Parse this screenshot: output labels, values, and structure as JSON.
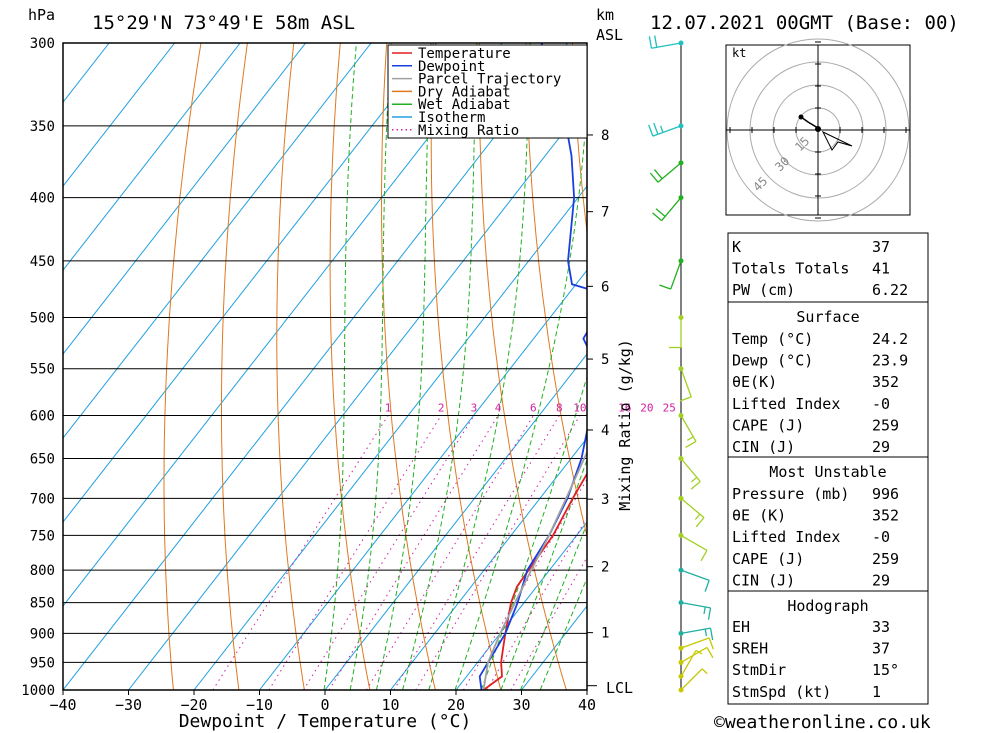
{
  "header": {
    "left_unit": "hPa",
    "location": "15°29'N  73°49'E  58m  ASL",
    "right_unit_1": "km",
    "right_unit_2": "ASL",
    "datetime": "12.07.2021  00GMT  (Base: 00)"
  },
  "legend": {
    "items": [
      {
        "label": "Temperature",
        "color": "#e02020",
        "style": "solid"
      },
      {
        "label": "Dewpoint",
        "color": "#1a3fe0",
        "style": "solid"
      },
      {
        "label": "Parcel Trajectory",
        "color": "#a0a0a0",
        "style": "solid"
      },
      {
        "label": "Dry Adiabat",
        "color": "#e07820",
        "style": "solid"
      },
      {
        "label": "Wet Adiabat",
        "color": "#20b020",
        "style": "solid"
      },
      {
        "label": "Isotherm",
        "color": "#20a0e0",
        "style": "solid"
      },
      {
        "label": "Mixing Ratio",
        "color": "#d020a0",
        "style": "dotted"
      }
    ]
  },
  "mixing_ratio_axis_label": "Mixing Ratio (g/kg)",
  "lcl_label": "LCL",
  "footer": "©weatheronline.co.uk",
  "hodograph": {
    "unit": "kt",
    "ring_labels": [
      "15",
      "30",
      "45"
    ]
  },
  "indices": {
    "rows": [
      {
        "label": "K",
        "value": "37"
      },
      {
        "label": "Totals Totals",
        "value": "41"
      },
      {
        "label": "PW (cm)",
        "value": "6.22"
      }
    ]
  },
  "surface": {
    "title": "Surface",
    "rows": [
      {
        "label": "Temp (°C)",
        "value": "24.2"
      },
      {
        "label": "Dewp (°C)",
        "value": "23.9"
      },
      {
        "label": "θE(K)",
        "value": "352"
      },
      {
        "label": "Lifted Index",
        "value": "-0"
      },
      {
        "label": "CAPE (J)",
        "value": "259"
      },
      {
        "label": "CIN (J)",
        "value": "29"
      }
    ]
  },
  "most_unstable": {
    "title": "Most Unstable",
    "rows": [
      {
        "label": "Pressure (mb)",
        "value": "996"
      },
      {
        "label": "θE (K)",
        "value": "352"
      },
      {
        "label": "Lifted Index",
        "value": "-0"
      },
      {
        "label": "CAPE (J)",
        "value": "259"
      },
      {
        "label": "CIN (J)",
        "value": "29"
      }
    ]
  },
  "hodograph_table": {
    "title": "Hodograph",
    "rows": [
      {
        "label": "EH",
        "value": "33"
      },
      {
        "label": "SREH",
        "value": "37"
      },
      {
        "label": "StmDir",
        "value": "15°"
      },
      {
        "label": "StmSpd (kt)",
        "value": "1"
      }
    ]
  },
  "chart_data": {
    "type": "line",
    "xlabel": "Dewpoint / Temperature (°C)",
    "ylabel_left": "hPa",
    "ylabel_right": "km ASL",
    "x_ticks": [
      -40,
      -30,
      -20,
      -10,
      0,
      10,
      20,
      30,
      40
    ],
    "xlim": [
      -40,
      40
    ],
    "pressure_ticks": [
      300,
      350,
      400,
      450,
      500,
      550,
      600,
      650,
      700,
      750,
      800,
      850,
      900,
      950,
      1000
    ],
    "plim": [
      1000,
      300
    ],
    "km_ticks": [
      1,
      2,
      3,
      4,
      5,
      6,
      7,
      8
    ],
    "mixing_ratio_labels": [
      "1",
      "2",
      "3",
      "4",
      "6",
      "8",
      "10",
      "16",
      "20",
      "25"
    ],
    "mixing_ratios": [
      1,
      2,
      3,
      4,
      6,
      8,
      10,
      16,
      20,
      25
    ],
    "isotherm_step_C": 10,
    "dry_adiabats_K": [
      250,
      260,
      270,
      280,
      290,
      300,
      310,
      320,
      330,
      340,
      350,
      360,
      370,
      380,
      390,
      400,
      410,
      420,
      430,
      440,
      450
    ],
    "wet_adiabats_K": [
      273,
      277,
      281,
      285,
      289,
      293,
      297,
      300,
      303,
      306
    ],
    "series": [
      {
        "name": "Temperature",
        "color": "#e02020",
        "points": [
          [
            1000,
            24.2
          ],
          [
            975,
            25.4
          ],
          [
            950,
            23.6
          ],
          [
            925,
            22.2
          ],
          [
            900,
            20.8
          ],
          [
            850,
            18.0
          ],
          [
            825,
            17.0
          ],
          [
            800,
            16.8
          ],
          [
            750,
            16.4
          ],
          [
            700,
            15.0
          ],
          [
            650,
            13.8
          ],
          [
            600,
            12.4
          ],
          [
            550,
            10.0
          ],
          [
            500,
            6.8
          ],
          [
            475,
            4.6
          ],
          [
            450,
            2.2
          ],
          [
            400,
            -5.2
          ],
          [
            375,
            -9.6
          ],
          [
            350,
            -13.0
          ]
        ]
      },
      {
        "name": "Dewpoint",
        "color": "#1a3fe0",
        "points": [
          [
            1000,
            23.9
          ],
          [
            975,
            22.0
          ],
          [
            950,
            21.6
          ],
          [
            900,
            20.8
          ],
          [
            850,
            19.0
          ],
          [
            800,
            16.6
          ],
          [
            750,
            15.8
          ],
          [
            700,
            14.2
          ],
          [
            650,
            11.6
          ],
          [
            600,
            7.8
          ],
          [
            550,
            3.4
          ],
          [
            520,
            -2.4
          ],
          [
            500,
            -3.0
          ],
          [
            480,
            -3.4
          ],
          [
            470,
            -10.6
          ],
          [
            450,
            -14.0
          ],
          [
            400,
            -20.6
          ],
          [
            370,
            -26.0
          ],
          [
            330,
            -35.0
          ],
          [
            300,
            -44.0
          ]
        ]
      },
      {
        "name": "Parcel Trajectory",
        "color": "#a0a0a0",
        "points": [
          [
            1000,
            24.2
          ],
          [
            950,
            21.6
          ],
          [
            900,
            20.0
          ],
          [
            850,
            18.6
          ],
          [
            800,
            17.2
          ],
          [
            750,
            15.8
          ],
          [
            700,
            14.0
          ],
          [
            650,
            12.0
          ],
          [
            600,
            10.0
          ],
          [
            550,
            7.8
          ],
          [
            500,
            4.8
          ],
          [
            450,
            1.6
          ],
          [
            400,
            -2.8
          ],
          [
            350,
            -8.6
          ]
        ]
      }
    ],
    "wind_barbs": {
      "pressures": [
        1000,
        975,
        950,
        925,
        900,
        850,
        800,
        750,
        700,
        650,
        600,
        550,
        500,
        450,
        400,
        375,
        350,
        300
      ],
      "directions_deg": [
        45,
        30,
        60,
        70,
        80,
        100,
        110,
        120,
        130,
        140,
        150,
        160,
        180,
        200,
        220,
        230,
        250,
        260
      ],
      "speeds_kt": [
        5,
        5,
        10,
        10,
        15,
        15,
        10,
        10,
        15,
        15,
        15,
        10,
        10,
        10,
        20,
        20,
        25,
        20
      ]
    }
  }
}
